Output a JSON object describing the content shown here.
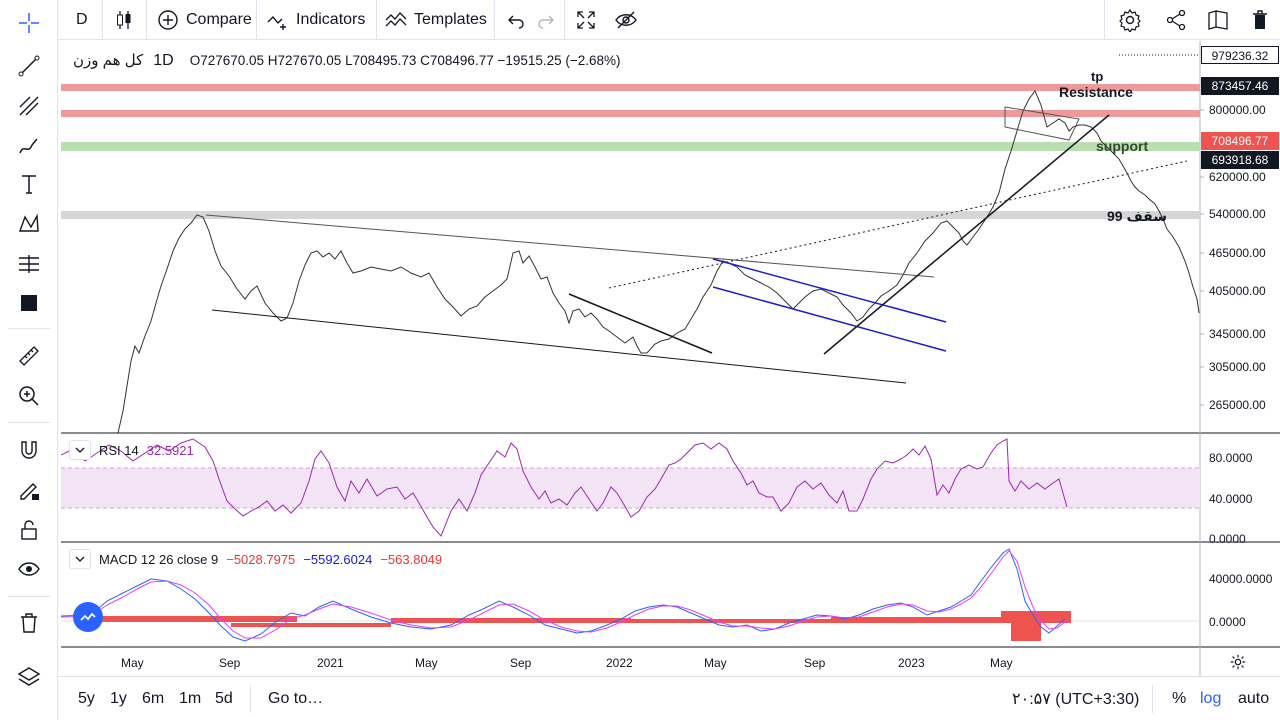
{
  "top_toolbar": {
    "interval": "D",
    "compare_label": "Compare",
    "indicators_label": "Indicators",
    "templates_label": "Templates"
  },
  "legend": {
    "symbol": "کل هم وزن",
    "timeframe": "1D",
    "ohlc": "O727670.05   H727670.05   L708495.73   C708496.77   −19515.25 (−2.68%)"
  },
  "price_axis": {
    "labels": [
      {
        "text": "979236.32",
        "style": "boxed"
      },
      {
        "text": "873457.46",
        "style": "dark"
      },
      {
        "text": "800000.00",
        "style": "plain"
      },
      {
        "text": "708496.77",
        "style": "red"
      },
      {
        "text": "693918.68",
        "style": "dark"
      },
      {
        "text": "620000.00",
        "style": "plain"
      },
      {
        "text": "540000.00",
        "style": "plain"
      },
      {
        "text": "465000.00",
        "style": "plain"
      },
      {
        "text": "405000.00",
        "style": "plain"
      },
      {
        "text": "345000.00",
        "style": "plain"
      },
      {
        "text": "305000.00",
        "style": "plain"
      },
      {
        "text": "265000.00",
        "style": "plain"
      }
    ]
  },
  "annotations": {
    "tp": "tp",
    "resistance": "Resistance",
    "support": "support",
    "ceiling99": "سقف 99"
  },
  "rsi": {
    "label": "RSI 14",
    "value": "32.5921",
    "axis": [
      "80.0000",
      "40.0000",
      "0.0000"
    ]
  },
  "macd": {
    "label": "MACD 12 26 close 9",
    "v1": "−5028.7975",
    "v2": "−5592.6024",
    "v3": "−563.8049",
    "axis": [
      "40000.0000",
      "0.0000"
    ]
  },
  "time_axis": [
    "May",
    "Sep",
    "2021",
    "May",
    "Sep",
    "2022",
    "May",
    "Sep",
    "2023",
    "May"
  ],
  "bottom_bar": {
    "ranges": [
      "5y",
      "1y",
      "6m",
      "1m",
      "5d"
    ],
    "goto": "Go to…",
    "clock": "۲۰:۵۷ (UTC+3:30)",
    "percent": "%",
    "log": "log",
    "auto": "auto"
  },
  "colors": {
    "resistance_band": "#ef9a9a",
    "support_band": "#a5d6a7",
    "ceiling_band": "#cfcfcf",
    "price_line": "#131722",
    "rsi_line": "#9c27b0",
    "rsi_band": "#f3e5f5",
    "macd_line": "#2962ff",
    "signal_line": "#ff6d00",
    "hist_neg": "#ef5350",
    "log_active": "#2962ff"
  }
}
